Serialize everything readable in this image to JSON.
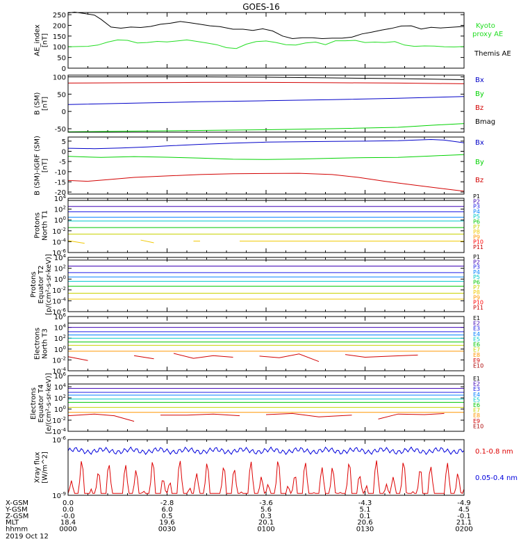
{
  "title": "GOES-16",
  "date_label": "2019 Oct 12",
  "colors": {
    "black": "#000000",
    "blue": "#0000c8",
    "green": "#00d200",
    "red": "#d20000",
    "ae_kyoto": "#22dd22",
    "xray_long": "#dd0000",
    "xray_short": "#0000dd"
  },
  "chart_data": [
    {
      "type": "line",
      "panel": "ae",
      "ylabel": [
        "AE_index",
        "[nT]"
      ],
      "ylim": [
        0,
        260
      ],
      "yticks": [
        0,
        50,
        100,
        150,
        200,
        250
      ],
      "ytick_labels": [
        "0",
        "50",
        "100",
        "150",
        "200",
        "250"
      ],
      "x_range_min": [
        0,
        120
      ],
      "series": [
        {
          "name": "Themis AE",
          "color": "#000000",
          "x": [
            0,
            2,
            5,
            8,
            10,
            13,
            16,
            19,
            22,
            25,
            28,
            31,
            34,
            37,
            40,
            43,
            46,
            50,
            53,
            56,
            59,
            62,
            65,
            68,
            71,
            74,
            77,
            80,
            83,
            86,
            89,
            92,
            95,
            98,
            101,
            104,
            107,
            110,
            113,
            116,
            120
          ],
          "y": [
            258,
            262,
            255,
            248,
            228,
            192,
            187,
            192,
            190,
            195,
            205,
            210,
            218,
            212,
            205,
            198,
            194,
            182,
            182,
            176,
            184,
            174,
            150,
            138,
            142,
            142,
            138,
            140,
            140,
            145,
            160,
            168,
            178,
            186,
            197,
            198,
            183,
            191,
            188,
            191,
            195
          ]
        },
        {
          "name": "Kyoto proxy AE",
          "color": "#22dd22",
          "x": [
            0,
            3,
            6,
            9,
            12,
            15,
            18,
            21,
            24,
            27,
            30,
            33,
            36,
            39,
            42,
            45,
            48,
            51,
            54,
            57,
            60,
            63,
            66,
            69,
            72,
            75,
            78,
            81,
            84,
            87,
            90,
            93,
            96,
            99,
            102,
            105,
            108,
            111,
            114,
            117,
            120
          ],
          "y": [
            100,
            101,
            102,
            108,
            122,
            132,
            130,
            118,
            120,
            125,
            123,
            127,
            132,
            125,
            118,
            110,
            96,
            92,
            112,
            124,
            127,
            120,
            110,
            108,
            118,
            122,
            110,
            128,
            128,
            130,
            120,
            122,
            120,
            124,
            108,
            102,
            104,
            103,
            100,
            99,
            101
          ]
        }
      ]
    },
    {
      "type": "line",
      "panel": "b_sm",
      "ylabel": [
        "B (SM)",
        "[nT]"
      ],
      "ylim": [
        -60,
        105
      ],
      "yticks": [
        -50,
        0,
        50,
        100
      ],
      "ytick_labels": [
        "-50",
        "0",
        "50",
        "100"
      ],
      "series": [
        {
          "name": "Bx",
          "color": "#0000c8",
          "x": [
            0,
            20,
            40,
            60,
            80,
            100,
            120
          ],
          "y": [
            20,
            24,
            28,
            31,
            34,
            38,
            43
          ]
        },
        {
          "name": "By",
          "color": "#00d200",
          "x": [
            0,
            20,
            40,
            60,
            80,
            100,
            110,
            120
          ],
          "y": [
            -59,
            -57,
            -55,
            -53,
            -50,
            -46,
            -40,
            -35
          ]
        },
        {
          "name": "Bz",
          "color": "#d20000",
          "x": [
            0,
            20,
            40,
            60,
            80,
            100,
            120
          ],
          "y": [
            82,
            83,
            84,
            84,
            83,
            82,
            80
          ]
        },
        {
          "name": "Bmag",
          "color": "#000000",
          "x": [
            0,
            20,
            40,
            60,
            80,
            100,
            120
          ],
          "y": [
            100,
            100,
            100,
            99,
            97,
            95,
            92
          ]
        }
      ]
    },
    {
      "type": "line",
      "panel": "b_igrf",
      "ylabel": [
        "B (SM)-IGRF (SM)",
        "[nT]"
      ],
      "ylim": [
        -21,
        7
      ],
      "yticks": [
        -20,
        -15,
        -10,
        -5,
        0,
        5
      ],
      "ytick_labels": [
        "-20",
        "-15",
        "-10",
        "-5",
        "0",
        "5"
      ],
      "series": [
        {
          "name": "Bx",
          "color": "#0000c8",
          "x": [
            0,
            8,
            16,
            24,
            32,
            40,
            50,
            60,
            70,
            80,
            90,
            100,
            110,
            114,
            120
          ],
          "y": [
            1.5,
            1.3,
            1.6,
            2.1,
            2.8,
            3.4,
            4.0,
            4.5,
            4.7,
            4.9,
            5.0,
            5.2,
            5.8,
            5.5,
            4.2
          ]
        },
        {
          "name": "By",
          "color": "#00d200",
          "x": [
            0,
            10,
            20,
            30,
            40,
            50,
            60,
            70,
            80,
            90,
            100,
            110,
            120
          ],
          "y": [
            -2.5,
            -3.0,
            -2.6,
            -2.9,
            -3.3,
            -3.9,
            -4.0,
            -3.8,
            -3.4,
            -3.1,
            -3.0,
            -2.3,
            -1.6
          ]
        },
        {
          "name": "Bz",
          "color": "#d20000",
          "x": [
            0,
            6,
            12,
            20,
            30,
            40,
            50,
            60,
            70,
            80,
            88,
            96,
            104,
            112,
            120
          ],
          "y": [
            -14.3,
            -14.7,
            -13.9,
            -12.8,
            -12.1,
            -11.4,
            -11.0,
            -10.9,
            -10.8,
            -11.4,
            -12.8,
            -14.7,
            -16.4,
            -18.0,
            -19.6
          ]
        }
      ]
    },
    {
      "type": "line",
      "panel": "protons_t1",
      "yscale": "log",
      "ylabel": [
        "Protons",
        "North T1"
      ],
      "ylim_log10": [
        -6,
        4
      ],
      "yticks_log10": [
        -6,
        -4,
        -2,
        0,
        2,
        4
      ],
      "ytick_labels": [
        "10^-6",
        "10^-4",
        "10^-2",
        "10^0",
        "10^2",
        "10^4"
      ],
      "series": [
        {
          "name": "P1",
          "color": "#000000",
          "log10_value": 3.6
        },
        {
          "name": "P2",
          "color": "#3c00b4",
          "log10_value": 2.5
        },
        {
          "name": "P3",
          "color": "#1e1ee6",
          "log10_value": 1.5
        },
        {
          "name": "P4",
          "color": "#0080ff",
          "log10_value": 0.5
        },
        {
          "name": "P5",
          "color": "#00c8c8",
          "log10_value": -0.2
        },
        {
          "name": "P6",
          "color": "#00c800",
          "log10_value": -1.4
        },
        {
          "name": "P7",
          "color": "#c8d200",
          "log10_value": -2.6
        },
        {
          "name": "P8",
          "color": "#f0c800",
          "log10_value": -3.9,
          "segments": [
            [
              0,
              5,
              -3.8,
              -4.3
            ],
            [
              22,
              26,
              -3.7,
              -4.2
            ],
            [
              38,
              40,
              -3.9,
              -3.9
            ],
            [
              52,
              120,
              -3.9,
              -3.9
            ]
          ]
        },
        {
          "name": "P9",
          "color": "#ff9600"
        },
        {
          "name": "P10",
          "color": "#ff0000"
        },
        {
          "name": "P11",
          "color": "#c80000"
        }
      ]
    },
    {
      "type": "line",
      "panel": "protons_t2",
      "yscale": "log",
      "ylabel": [
        "Protons",
        "Equator T2",
        "[p/(cm²-s-sr-keV)]"
      ],
      "ylim_log10": [
        -6,
        4
      ],
      "yticks_log10": [
        -6,
        -4,
        -2,
        0,
        2,
        4
      ],
      "ytick_labels": [
        "10^-6",
        "10^-4",
        "10^-2",
        "10^0",
        "10^2",
        "10^4"
      ],
      "series": [
        {
          "name": "P1",
          "color": "#000000",
          "log10_value": 3.5
        },
        {
          "name": "P2",
          "color": "#3c00b4",
          "log10_value": 2.4
        },
        {
          "name": "P3",
          "color": "#1e1ee6",
          "log10_value": 1.2
        },
        {
          "name": "P4",
          "color": "#0080ff",
          "log10_value": 0.4
        },
        {
          "name": "P5",
          "color": "#00c8c8",
          "log10_value": -0.4
        },
        {
          "name": "P6",
          "color": "#00c800",
          "log10_value": -1.3
        },
        {
          "name": "P7",
          "color": "#c8d200",
          "log10_value": -2.6
        },
        {
          "name": "P8",
          "color": "#f0c800",
          "log10_value": -3.7
        },
        {
          "name": "P9",
          "color": "#ff9600"
        },
        {
          "name": "P10",
          "color": "#ff0000"
        },
        {
          "name": "P11",
          "color": "#c80000"
        }
      ]
    },
    {
      "type": "line",
      "panel": "electrons_t3",
      "yscale": "log",
      "ylabel": [
        "Electrons",
        "North T3"
      ],
      "ylim_log10": [
        -4,
        6
      ],
      "yticks_log10": [
        -4,
        -2,
        0,
        2,
        4,
        6
      ],
      "ytick_labels": [
        "10^-4",
        "10^-2",
        "10^0",
        "10^2",
        "10^4",
        "10^6"
      ],
      "series": [
        {
          "name": "E1",
          "color": "#000000",
          "log10_value": 4.8
        },
        {
          "name": "E2",
          "color": "#3c00b4",
          "log10_value": 4.0
        },
        {
          "name": "E3",
          "color": "#1e1ee6",
          "log10_value": 3.2
        },
        {
          "name": "E4",
          "color": "#0080ff",
          "log10_value": 2.6
        },
        {
          "name": "E5",
          "color": "#00c8c8",
          "log10_value": 2.0
        },
        {
          "name": "E6",
          "color": "#00c800",
          "log10_value": 1.3
        },
        {
          "name": "E7",
          "color": "#c8d200",
          "log10_value": 0.7
        },
        {
          "name": "E8",
          "color": "#ff9600",
          "log10_value": -0.4
        },
        {
          "name": "E9",
          "color": "#d20000",
          "log10_value": -1.5,
          "points": [
            [
              0,
              -1.4
            ],
            [
              6,
              -2.1
            ],
            [
              20,
              -1.2
            ],
            [
              26,
              -1.8
            ],
            [
              32,
              -0.8
            ],
            [
              38,
              -1.7
            ],
            [
              44,
              -1.2
            ],
            [
              50,
              -1.5
            ],
            [
              58,
              -1.3
            ],
            [
              64,
              -1.6
            ],
            [
              70,
              -0.9
            ],
            [
              76,
              -2.3
            ],
            [
              84,
              -1.0
            ],
            [
              90,
              -1.5
            ],
            [
              98,
              -1.3
            ],
            [
              106,
              -1.1
            ],
            [
              112,
              -1.9
            ]
          ]
        },
        {
          "name": "E10",
          "color": "#aa0000"
        }
      ]
    },
    {
      "type": "line",
      "panel": "electrons_t4",
      "yscale": "log",
      "ylabel": [
        "Electrons",
        "Equator T4",
        "[e/(cm²-s-sr-keV)]"
      ],
      "ylim_log10": [
        -4,
        6
      ],
      "yticks_log10": [
        -4,
        -2,
        0,
        2,
        4,
        6
      ],
      "ytick_labels": [
        "10^-4",
        "10^-2",
        "10^0",
        "10^2",
        "10^4",
        "10^6"
      ],
      "series": [
        {
          "name": "E1",
          "color": "#000000",
          "log10_value": 4.5
        },
        {
          "name": "E2",
          "color": "#3c00b4",
          "log10_value": 3.7
        },
        {
          "name": "E3",
          "color": "#1e1ee6",
          "log10_value": 3.0
        },
        {
          "name": "E4",
          "color": "#0080ff",
          "log10_value": 2.5
        },
        {
          "name": "E5",
          "color": "#00c8c8",
          "log10_value": 1.8
        },
        {
          "name": "E6",
          "color": "#00c800",
          "log10_value": 1.2
        },
        {
          "name": "E7",
          "color": "#c8d200",
          "log10_value": 0.3
        },
        {
          "name": "E8",
          "color": "#ff9600",
          "log10_value": -0.6
        },
        {
          "name": "E9",
          "color": "#d20000",
          "log10_value": -1.3,
          "points": [
            [
              0,
              -1.2
            ],
            [
              8,
              -0.9
            ],
            [
              14,
              -1.2
            ],
            [
              20,
              -2.2
            ],
            [
              28,
              -1.1
            ],
            [
              36,
              -1.1
            ],
            [
              44,
              -0.9
            ],
            [
              52,
              -1.2
            ],
            [
              60,
              -1.0
            ],
            [
              68,
              -0.8
            ],
            [
              76,
              -1.4
            ],
            [
              86,
              -1.1
            ],
            [
              94,
              -1.8
            ],
            [
              100,
              -0.9
            ],
            [
              108,
              -1.0
            ],
            [
              114,
              -0.8
            ]
          ]
        },
        {
          "name": "E10",
          "color": "#aa0000"
        }
      ]
    },
    {
      "type": "line",
      "panel": "xray",
      "yscale": "log",
      "ylabel": [
        "Xray flux",
        "[W/m^2]"
      ],
      "ylim_log10": [
        -9,
        -6
      ],
      "yticks_log10": [
        -9,
        -6
      ],
      "ytick_labels": [
        "10^-9",
        "10^-6"
      ],
      "series": [
        {
          "name": "0.1-0.8 nm",
          "color": "#dd0000",
          "log10_base": -8.9
        },
        {
          "name": "0.05-0.4 nm",
          "color": "#0000dd",
          "log10_base": -6.6
        }
      ]
    }
  ],
  "x_axis": {
    "rows": [
      {
        "label": "X-GSM",
        "values": [
          "0.0",
          "-2.8",
          "-3.6",
          "-4.3",
          "-4.9"
        ]
      },
      {
        "label": "Y-GSM",
        "values": [
          "0.0",
          "6.0",
          "5.6",
          "5.1",
          "4.5"
        ]
      },
      {
        "label": "Z-GSM",
        "values": [
          "-0.0",
          "0.5",
          "0.3",
          "0.1",
          "-0.1"
        ]
      },
      {
        "label": "MLT",
        "values": [
          "18.4",
          "19.6",
          "20.1",
          "20.6",
          "21.1"
        ]
      },
      {
        "label": "hhmm",
        "values": [
          "0000",
          "0030",
          "0100",
          "0130",
          "0200"
        ]
      }
    ]
  },
  "legends": {
    "ae": [
      "Kyoto",
      "proxy AE",
      "Themis AE"
    ],
    "b": [
      "Bx",
      "By",
      "Bz",
      "Bmag"
    ],
    "b_igrf": [
      "Bx",
      "By",
      "Bz"
    ],
    "protons": [
      "P1",
      "P2",
      "P3",
      "P4",
      "P5",
      "P6",
      "P7",
      "P8",
      "P9",
      "P10",
      "P11"
    ],
    "electrons": [
      "E1",
      "E2",
      "E3",
      "E4",
      "E5",
      "E6",
      "E7",
      "E8",
      "E9",
      "E10"
    ],
    "xray": [
      "0.1-0.8 nm",
      "0.05-0.4 nm"
    ]
  }
}
